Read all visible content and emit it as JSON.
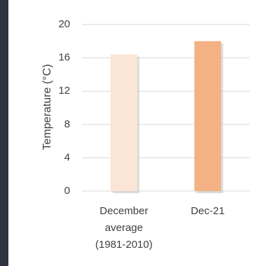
{
  "chart_data": {
    "type": "bar",
    "categories": [
      [
        "December",
        "average",
        "(1981-2010)"
      ],
      [
        "Dec-21"
      ]
    ],
    "values": [
      16.4,
      18.0
    ],
    "bar_colors": [
      "#fbe5d6",
      "#f4b183"
    ],
    "ylabel": "Temperature (°C)",
    "ylim": [
      0,
      20
    ],
    "yticks": [
      0,
      4,
      8,
      12,
      16,
      20
    ],
    "grid": true,
    "legend": "none"
  }
}
